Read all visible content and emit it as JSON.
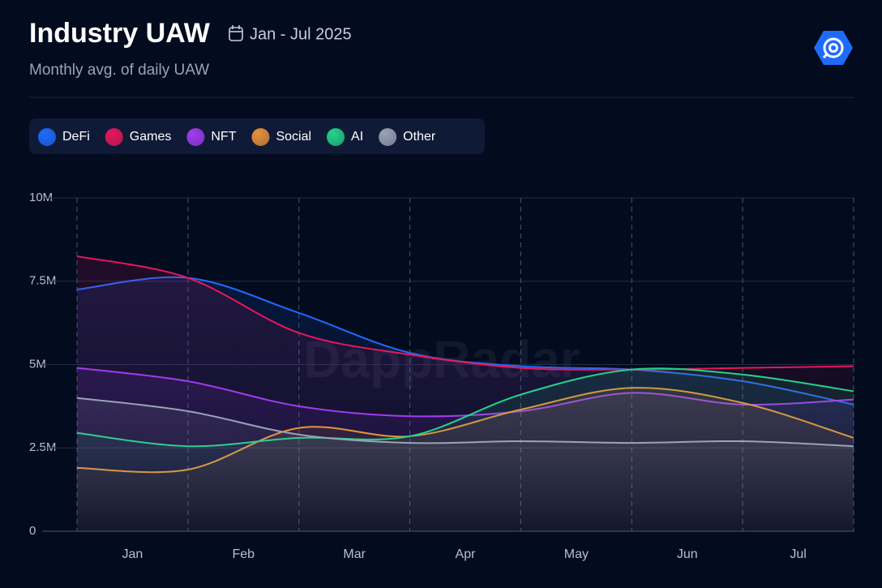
{
  "chart_data": {
    "type": "line",
    "title": "Industry UAW",
    "date_range": "Jan - Jul 2025",
    "subtitle": "Monthly avg. of daily UAW",
    "watermark": "DappRadar",
    "categories": [
      null,
      null,
      null,
      null,
      null,
      null,
      null,
      null
    ],
    "x_labels": [
      "Jan",
      "Feb",
      "Mar",
      "Apr",
      "May",
      "Jun",
      "Jul"
    ],
    "ylim": [
      0,
      10000000
    ],
    "yticks": [
      0,
      {
        "value": 2500000,
        "label": "2.5M"
      },
      {
        "value": 5000000,
        "label": "5M"
      },
      {
        "value": 7500000,
        "label": "7.5M"
      },
      {
        "value": 10000000,
        "label": "10M"
      }
    ],
    "grid": true,
    "series": [
      {
        "name": "DeFi",
        "color": "#1f6bff",
        "values": [
          7250000,
          7600000,
          6550000,
          5350000,
          4950000,
          4850000,
          4500000,
          3800000
        ]
      },
      {
        "name": "Games",
        "color": "#e8175d",
        "values": [
          8250000,
          7600000,
          5950000,
          5300000,
          4900000,
          4850000,
          4900000,
          4950000
        ]
      },
      {
        "name": "NFT",
        "color": "#a43bf0",
        "values": [
          4900000,
          4500000,
          3750000,
          3450000,
          3600000,
          4150000,
          3800000,
          3950000
        ]
      },
      {
        "name": "Social",
        "color": "#e8923a",
        "values": [
          1900000,
          1850000,
          3100000,
          2850000,
          3650000,
          4300000,
          3850000,
          2800000
        ]
      },
      {
        "name": "AI",
        "color": "#22d38a",
        "values": [
          2950000,
          2550000,
          2800000,
          2850000,
          4100000,
          4850000,
          4700000,
          4200000
        ]
      },
      {
        "name": "Other",
        "color": "#9aa3b8",
        "values": [
          4000000,
          3600000,
          2900000,
          2650000,
          2700000,
          2650000,
          2700000,
          2550000
        ]
      }
    ]
  }
}
